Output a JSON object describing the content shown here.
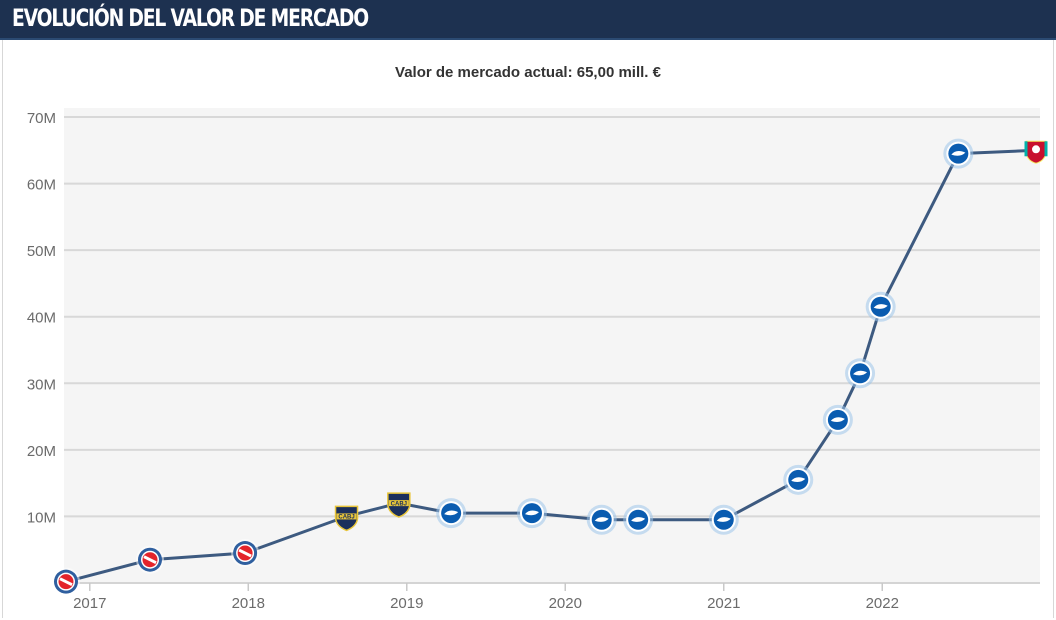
{
  "header": {
    "title": "Evolución del valor de mercado"
  },
  "subtitle": "Valor de mercado actual: 65,00 mill. €",
  "colors": {
    "header_bg": "#1d3150",
    "line": "#3d5a80",
    "grid": "#d8d8d8",
    "plot_bg": "#f5f5f5",
    "axis_text": "#6b6b6b"
  },
  "chart_data": {
    "type": "line",
    "title": "Valor de mercado actual: 65,00 mill. €",
    "xlabel": "",
    "ylabel": "",
    "ylim": [
      0,
      70
    ],
    "xlim": [
      2016.85,
      2022.97
    ],
    "y_ticks": [
      10,
      20,
      30,
      40,
      50,
      60,
      70
    ],
    "y_tick_labels": [
      "10M",
      "20M",
      "30M",
      "40M",
      "50M",
      "60M",
      "70M"
    ],
    "x_ticks": [
      2017,
      2018,
      2019,
      2020,
      2021,
      2022
    ],
    "x_tick_labels": [
      "2017",
      "2018",
      "2019",
      "2020",
      "2021",
      "2022"
    ],
    "grid": true,
    "series": [
      {
        "name": "Valor de mercado",
        "points": [
          {
            "x": 2016.85,
            "y": 0.2,
            "club": "argentinos-juniors"
          },
          {
            "x": 2017.38,
            "y": 3.5,
            "club": "argentinos-juniors"
          },
          {
            "x": 2017.98,
            "y": 4.5,
            "club": "argentinos-juniors"
          },
          {
            "x": 2018.62,
            "y": 10,
            "club": "boca-juniors"
          },
          {
            "x": 2018.95,
            "y": 12,
            "club": "boca-juniors"
          },
          {
            "x": 2019.28,
            "y": 10.5,
            "club": "brighton"
          },
          {
            "x": 2019.79,
            "y": 10.5,
            "club": "brighton"
          },
          {
            "x": 2020.23,
            "y": 9.5,
            "club": "brighton"
          },
          {
            "x": 2020.46,
            "y": 9.5,
            "club": "brighton"
          },
          {
            "x": 2021.0,
            "y": 9.5,
            "club": "brighton"
          },
          {
            "x": 2021.47,
            "y": 15.5,
            "club": "brighton"
          },
          {
            "x": 2021.72,
            "y": 24.5,
            "club": "brighton"
          },
          {
            "x": 2021.86,
            "y": 31.5,
            "club": "brighton"
          },
          {
            "x": 2021.99,
            "y": 41.5,
            "club": "brighton"
          },
          {
            "x": 2022.48,
            "y": 64.5,
            "club": "brighton"
          },
          {
            "x": 2022.97,
            "y": 65,
            "club": "liverpool"
          }
        ]
      }
    ]
  }
}
